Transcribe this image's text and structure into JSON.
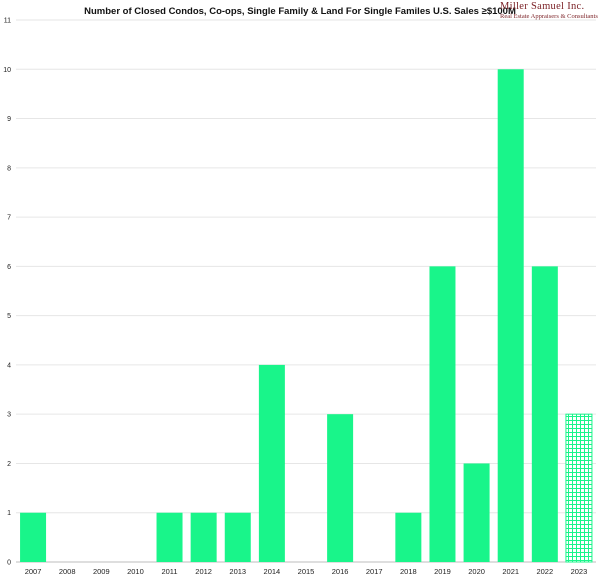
{
  "chart_data": {
    "type": "bar",
    "title": "Number of Closed Condos, Co-ops, Single Family & Land For Single Familes U.S. Sales ≥$100M",
    "categories": [
      "2007",
      "2008",
      "2009",
      "2010",
      "2011",
      "2012",
      "2013",
      "2014",
      "2015",
      "2016",
      "2017",
      "2018",
      "2019",
      "2020",
      "2021",
      "2022",
      "2023"
    ],
    "values": [
      1,
      0,
      0,
      0,
      1,
      1,
      1,
      4,
      0,
      3,
      0,
      1,
      6,
      2,
      10,
      6,
      3
    ],
    "partial_categories": [
      "2023"
    ],
    "ylim": [
      0,
      11
    ],
    "yticks": [
      0,
      1,
      2,
      3,
      4,
      5,
      6,
      7,
      8,
      9,
      10,
      11
    ],
    "xlabel": "",
    "ylabel": "",
    "grid": true,
    "bar_color": "#19f58a",
    "grid_color": "#e6e6e6"
  },
  "logo": {
    "brand": "Miller Samuel Inc.",
    "tagline": "Real Estate Appraisers & Consultants"
  }
}
